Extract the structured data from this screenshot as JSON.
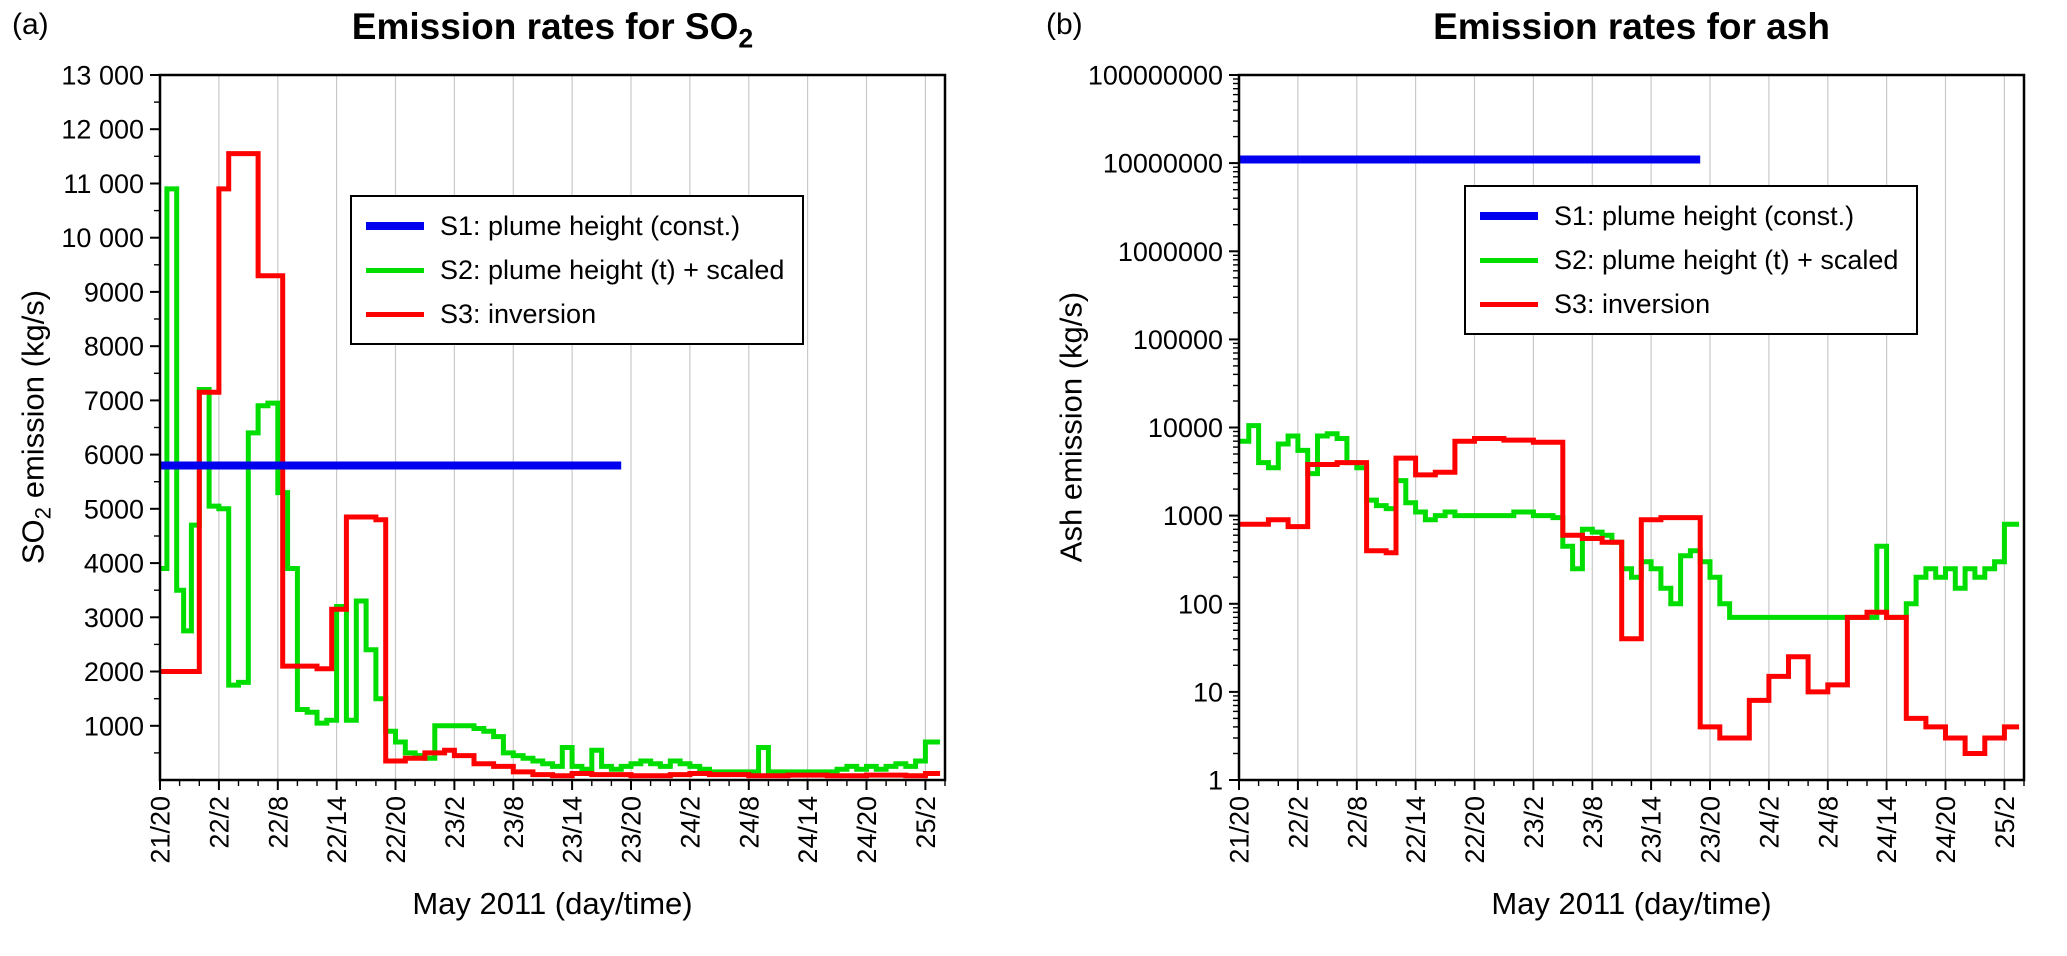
{
  "chart_data": [
    {
      "type": "step-line",
      "panel_label": "(a)",
      "title": "Emission rates for SO2",
      "title_prefix": "Emission rates for SO",
      "title_sub": "2",
      "xlabel": "May 2011 (day/time)",
      "ylabel_prefix": "SO",
      "ylabel_sub": "2",
      "ylabel_suffix": " emission (kg/s)",
      "yscale": "linear",
      "ylim": [
        0,
        13000
      ],
      "ytick_values": [
        1000,
        2000,
        3000,
        4000,
        5000,
        6000,
        7000,
        8000,
        9000,
        10000,
        11000,
        12000,
        13000
      ],
      "ytick_labels": [
        "1000",
        "2000",
        "3000",
        "4000",
        "5000",
        "6000",
        "7000",
        "8000",
        "9000",
        "10 000",
        "11 000",
        "12 000",
        "13 000"
      ],
      "y_minor_step": 500,
      "xlim": [
        0,
        80
      ],
      "x_units": "hours since first tick (21/20)",
      "xtick_values": [
        0,
        6,
        12,
        18,
        24,
        30,
        36,
        42,
        48,
        54,
        60,
        66,
        72,
        78
      ],
      "xtick_labels": [
        "21/20",
        "22/2",
        "22/8",
        "22/14",
        "22/20",
        "23/2",
        "23/8",
        "23/14",
        "23/20",
        "24/2",
        "24/8",
        "24/14",
        "24/20",
        "25/2"
      ],
      "x_minor_step": 2,
      "grid": "vertical",
      "legend_position": "upper middle",
      "series": [
        {
          "name": "S1: plume height (const.)",
          "color": "#0000ee",
          "width": 8,
          "style": "constant",
          "points": [
            [
              0,
              5800
            ],
            [
              47,
              5800
            ]
          ]
        },
        {
          "name": "S2: plume height (t) + scaled",
          "color": "#00dd00",
          "width": 5,
          "style": "step",
          "points": [
            [
              0,
              3900
            ],
            [
              0.7,
              10900
            ],
            [
              1.7,
              3500
            ],
            [
              2.4,
              2750
            ],
            [
              3.2,
              4700
            ],
            [
              4,
              7200
            ],
            [
              5,
              5050
            ],
            [
              6,
              5000
            ],
            [
              7,
              1750
            ],
            [
              8,
              1800
            ],
            [
              9,
              6400
            ],
            [
              10,
              6900
            ],
            [
              11,
              6950
            ],
            [
              12,
              5300
            ],
            [
              13,
              3900
            ],
            [
              14,
              1300
            ],
            [
              15,
              1250
            ],
            [
              16,
              1050
            ],
            [
              17,
              1100
            ],
            [
              18,
              3200
            ],
            [
              19,
              1100
            ],
            [
              20,
              3300
            ],
            [
              21,
              2400
            ],
            [
              22,
              1500
            ],
            [
              23,
              900
            ],
            [
              24,
              700
            ],
            [
              25,
              500
            ],
            [
              26,
              450
            ],
            [
              27,
              400
            ],
            [
              28,
              1000
            ],
            [
              30,
              1000
            ],
            [
              32,
              950
            ],
            [
              33,
              900
            ],
            [
              34,
              800
            ],
            [
              35,
              500
            ],
            [
              36,
              450
            ],
            [
              37,
              400
            ],
            [
              38,
              350
            ],
            [
              39,
              300
            ],
            [
              40,
              250
            ],
            [
              41,
              600
            ],
            [
              42,
              250
            ],
            [
              43,
              200
            ],
            [
              44,
              550
            ],
            [
              45,
              250
            ],
            [
              46,
              200
            ],
            [
              47,
              250
            ],
            [
              48,
              300
            ],
            [
              49,
              350
            ],
            [
              50,
              300
            ],
            [
              51,
              250
            ],
            [
              52,
              350
            ],
            [
              53,
              300
            ],
            [
              54,
              250
            ],
            [
              55,
              200
            ],
            [
              56,
              150
            ],
            [
              57,
              150
            ],
            [
              58,
              150
            ],
            [
              60,
              150
            ],
            [
              61,
              600
            ],
            [
              62,
              150
            ],
            [
              64,
              150
            ],
            [
              66,
              150
            ],
            [
              68,
              150
            ],
            [
              69,
              200
            ],
            [
              70,
              250
            ],
            [
              71,
              200
            ],
            [
              72,
              250
            ],
            [
              73,
              200
            ],
            [
              74,
              250
            ],
            [
              75,
              300
            ],
            [
              76,
              250
            ],
            [
              77,
              350
            ],
            [
              78,
              700
            ],
            [
              79.5,
              700
            ]
          ]
        },
        {
          "name": "S3: inversion",
          "color": "#ff0000",
          "width": 5,
          "style": "step",
          "points": [
            [
              0,
              2000
            ],
            [
              4,
              7150
            ],
            [
              6,
              10900
            ],
            [
              7,
              11550
            ],
            [
              10,
              9300
            ],
            [
              12.5,
              2100
            ],
            [
              16,
              2050
            ],
            [
              17.5,
              3150
            ],
            [
              19,
              4850
            ],
            [
              22,
              4800
            ],
            [
              23,
              350
            ],
            [
              25,
              400
            ],
            [
              27,
              500
            ],
            [
              29,
              550
            ],
            [
              30,
              450
            ],
            [
              32,
              300
            ],
            [
              34,
              250
            ],
            [
              36,
              150
            ],
            [
              38,
              100
            ],
            [
              40,
              80
            ],
            [
              42,
              120
            ],
            [
              44,
              100
            ],
            [
              48,
              80
            ],
            [
              52,
              100
            ],
            [
              54,
              120
            ],
            [
              56,
              100
            ],
            [
              60,
              80
            ],
            [
              64,
              90
            ],
            [
              68,
              80
            ],
            [
              72,
              90
            ],
            [
              76,
              80
            ],
            [
              78,
              120
            ],
            [
              79.5,
              120
            ]
          ]
        }
      ]
    },
    {
      "type": "step-line",
      "panel_label": "(b)",
      "title": "Emission rates for ash",
      "title_prefix": "Emission rates for ash",
      "title_sub": "",
      "xlabel": "May 2011 (day/time)",
      "ylabel_prefix": "Ash emission (kg/s)",
      "ylabel_sub": "",
      "ylabel_suffix": "",
      "yscale": "log",
      "ylim": [
        1,
        100000000
      ],
      "ytick_values": [
        1,
        10,
        100,
        1000,
        10000,
        100000,
        1000000,
        10000000,
        100000000
      ],
      "ytick_labels": [
        "1",
        "10",
        "100",
        "1000",
        "10000",
        "100000",
        "1000000",
        "10000000",
        "100000000"
      ],
      "xlim": [
        0,
        80
      ],
      "x_units": "hours since first tick (21/20)",
      "xtick_values": [
        0,
        6,
        12,
        18,
        24,
        30,
        36,
        42,
        48,
        54,
        60,
        66,
        72,
        78
      ],
      "xtick_labels": [
        "21/20",
        "22/2",
        "22/8",
        "22/14",
        "22/20",
        "23/2",
        "23/8",
        "23/14",
        "23/20",
        "24/2",
        "24/8",
        "24/14",
        "24/20",
        "25/2"
      ],
      "x_minor_step": 2,
      "grid": "vertical",
      "legend_position": "upper right",
      "series": [
        {
          "name": "S1: plume height (const.)",
          "color": "#0000ee",
          "width": 8,
          "style": "constant",
          "points": [
            [
              0,
              11000000
            ],
            [
              47,
              11000000
            ]
          ]
        },
        {
          "name": "S2: plume height (t) + scaled",
          "color": "#00dd00",
          "width": 5,
          "style": "step",
          "points": [
            [
              0,
              7000
            ],
            [
              1,
              10500
            ],
            [
              2,
              4000
            ],
            [
              3,
              3500
            ],
            [
              4,
              6500
            ],
            [
              5,
              8000
            ],
            [
              6,
              5500
            ],
            [
              7,
              3000
            ],
            [
              8,
              8000
            ],
            [
              9,
              8500
            ],
            [
              10,
              7500
            ],
            [
              11,
              4000
            ],
            [
              12,
              3500
            ],
            [
              13,
              1500
            ],
            [
              14,
              1300
            ],
            [
              15,
              1200
            ],
            [
              16,
              2500
            ],
            [
              17,
              1400
            ],
            [
              18,
              1100
            ],
            [
              19,
              900
            ],
            [
              20,
              1000
            ],
            [
              21,
              1100
            ],
            [
              22,
              1000
            ],
            [
              26,
              1000
            ],
            [
              28,
              1100
            ],
            [
              30,
              1000
            ],
            [
              32,
              950
            ],
            [
              33,
              450
            ],
            [
              34,
              250
            ],
            [
              35,
              700
            ],
            [
              36,
              650
            ],
            [
              37,
              600
            ],
            [
              38,
              500
            ],
            [
              39,
              250
            ],
            [
              40,
              200
            ],
            [
              41,
              300
            ],
            [
              42,
              250
            ],
            [
              43,
              150
            ],
            [
              44,
              100
            ],
            [
              45,
              350
            ],
            [
              46,
              400
            ],
            [
              47,
              300
            ],
            [
              48,
              200
            ],
            [
              49,
              100
            ],
            [
              50,
              70
            ],
            [
              56,
              70
            ],
            [
              62,
              70
            ],
            [
              65,
              450
            ],
            [
              66,
              70
            ],
            [
              68,
              100
            ],
            [
              69,
              200
            ],
            [
              70,
              250
            ],
            [
              71,
              200
            ],
            [
              72,
              250
            ],
            [
              73,
              150
            ],
            [
              74,
              250
            ],
            [
              75,
              200
            ],
            [
              76,
              250
            ],
            [
              77,
              300
            ],
            [
              78,
              800
            ],
            [
              79.5,
              800
            ]
          ]
        },
        {
          "name": "S3: inversion",
          "color": "#ff0000",
          "width": 5,
          "style": "step",
          "points": [
            [
              0,
              800
            ],
            [
              3,
              900
            ],
            [
              5,
              750
            ],
            [
              7,
              3800
            ],
            [
              10,
              4000
            ],
            [
              13,
              400
            ],
            [
              15,
              380
            ],
            [
              16,
              4500
            ],
            [
              18,
              2900
            ],
            [
              20,
              3100
            ],
            [
              22,
              7000
            ],
            [
              24,
              7500
            ],
            [
              27,
              7200
            ],
            [
              30,
              6800
            ],
            [
              33,
              600
            ],
            [
              35,
              550
            ],
            [
              37,
              500
            ],
            [
              39,
              40
            ],
            [
              41,
              900
            ],
            [
              43,
              950
            ],
            [
              47,
              4
            ],
            [
              49,
              3
            ],
            [
              52,
              8
            ],
            [
              54,
              15
            ],
            [
              56,
              25
            ],
            [
              58,
              10
            ],
            [
              60,
              12
            ],
            [
              62,
              70
            ],
            [
              64,
              80
            ],
            [
              66,
              70
            ],
            [
              68,
              5
            ],
            [
              70,
              4
            ],
            [
              72,
              3
            ],
            [
              74,
              2
            ],
            [
              76,
              3
            ],
            [
              78,
              4
            ],
            [
              79.5,
              4
            ]
          ]
        }
      ]
    }
  ]
}
